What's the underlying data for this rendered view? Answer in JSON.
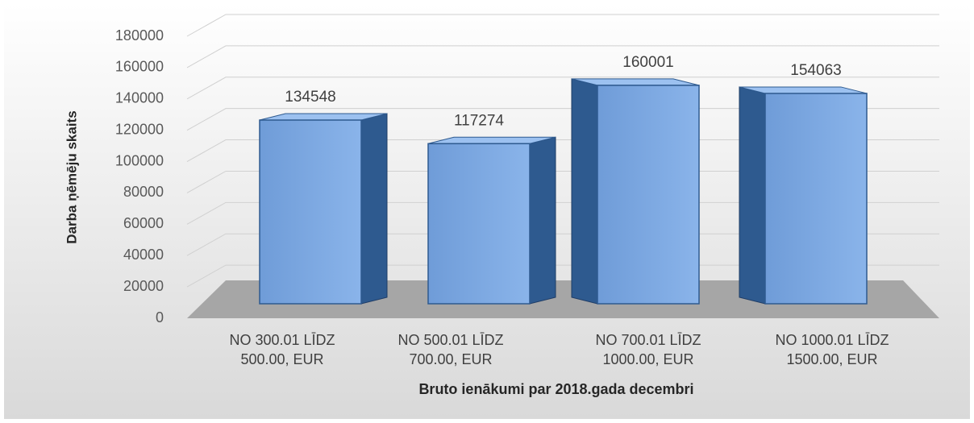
{
  "chart_data": {
    "type": "bar3d",
    "y_label": "Darba ņēmēju skaits",
    "x_label": "Bruto ienākumi par 2018.gada decembri",
    "categories": [
      "NO 300.01 LĪDZ 500.00, EUR",
      "NO 500.01 LĪDZ 700.00, EUR",
      "NO 700.01 LĪDZ 1000.00, EUR",
      "NO 1000.01 LĪDZ 1500.00, EUR"
    ],
    "values": [
      134548,
      117274,
      160001,
      154063
    ],
    "color": "#7aa6de",
    "ylim": [
      0,
      180000
    ],
    "yticks": [
      0,
      20000,
      40000,
      60000,
      80000,
      100000,
      120000,
      140000,
      160000,
      180000
    ],
    "grid": true
  }
}
